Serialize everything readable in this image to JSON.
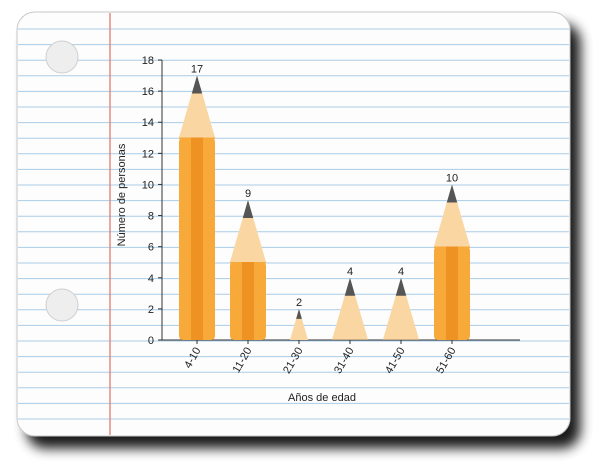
{
  "chart_data": {
    "type": "bar",
    "title": "",
    "xlabel": "Años de edad",
    "ylabel": "Número de personas",
    "categories": [
      "4-10",
      "11-20",
      "21-30",
      "31-40",
      "41-50",
      "51-60"
    ],
    "values": [
      17,
      9,
      2,
      4,
      4,
      10
    ],
    "ylim": [
      0,
      18
    ],
    "yticks": [
      0,
      2,
      4,
      6,
      8,
      10,
      12,
      14,
      16,
      18
    ],
    "grid": false,
    "legend": "none",
    "data_labels": true,
    "bar_style": "pencil"
  },
  "colors": {
    "paper": "#fdfdfd",
    "ruled_line": "#a9cde8",
    "margin_line": "#e07a6e",
    "pencil_body": "#f7a93a",
    "pencil_body_dark": "#ef9224",
    "pencil_wood": "#f9d6a2",
    "pencil_lead": "#555555",
    "axis": "#333333"
  }
}
